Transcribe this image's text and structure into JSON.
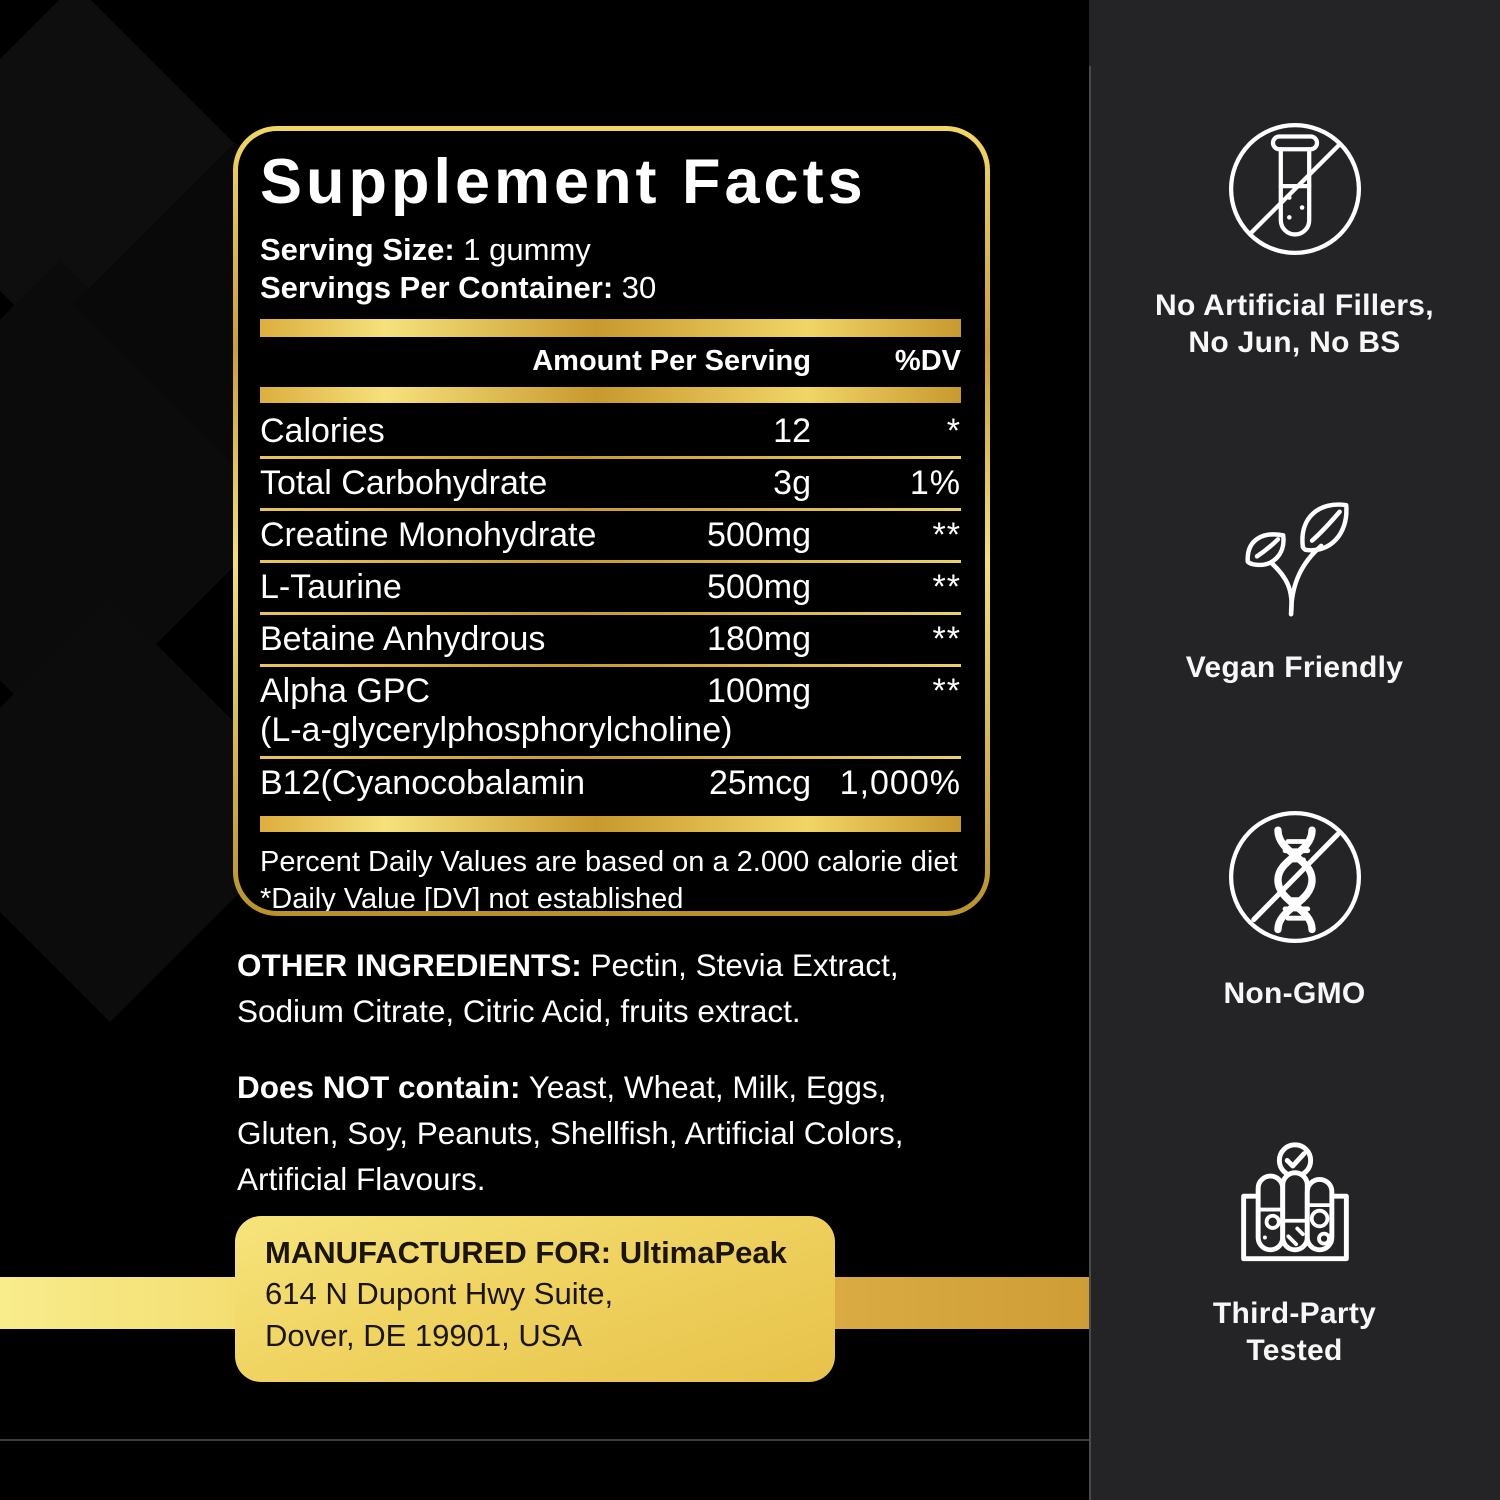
{
  "panel": {
    "title": "Supplement Facts",
    "serving_size_label": "Serving Size:",
    "serving_size_value": " 1 gummy",
    "servings_label": "Servings Per Container:",
    "servings_value": " 30",
    "col_amount": "Amount Per Serving",
    "col_dv": "%DV",
    "rows": [
      {
        "name": "Calories",
        "amount": "12",
        "dv": "*"
      },
      {
        "name": "Total Carbohydrate",
        "amount": "3g",
        "dv": "1%"
      },
      {
        "name": "Creatine Monohydrate",
        "amount": "500mg",
        "dv": "**"
      },
      {
        "name": "L-Taurine",
        "amount": "500mg",
        "dv": "**"
      },
      {
        "name": "Betaine Anhydrous",
        "amount": "180mg",
        "dv": "**"
      },
      {
        "name": "Alpha GPC",
        "name2": "(L-a-glycerylphosphorylcholine)",
        "amount": "100mg",
        "dv": "**"
      },
      {
        "name": "B12(Cyanocobalamin",
        "amount": "25mcg",
        "dv": "1,000%"
      }
    ],
    "footnote_line1": "Percent Daily Values are based on a 2.000 calorie diet",
    "footnote_line2": "*Daily Value [DV] not established"
  },
  "sections": {
    "other_ingredients_label": "OTHER INGREDIENTS:",
    "other_ingredients_text": " Pectin, Stevia Extract, Sodium Citrate, Citric Acid, fruits extract.",
    "not_contain_label": "Does NOT contain:",
    "not_contain_text": " Yeast, Wheat, Milk, Eggs, Gluten, Soy, Peanuts, Shellfish, Artificial Colors, Artificial Flavours."
  },
  "manufacturer": {
    "label": "MANUFACTURED FOR: UltimaPeak",
    "address_line1": "614 N Dupont Hwy Suite,",
    "address_line2": "Dover, DE 19901, USA"
  },
  "sidebar": {
    "items": [
      {
        "icon": "no-artificial-fillers-icon",
        "label_line1": "No Artificial Fillers,",
        "label_line2": "No Jun, No BS"
      },
      {
        "icon": "vegan-icon",
        "label_line1": "Vegan Friendly",
        "label_line2": ""
      },
      {
        "icon": "non-gmo-icon",
        "label_line1": "Non-GMO",
        "label_line2": ""
      },
      {
        "icon": "third-party-tested-icon",
        "label_line1": "Third-Party",
        "label_line2": "Tested"
      }
    ]
  },
  "colors": {
    "gold_light": "#f6e17c",
    "gold": "#d4a73c",
    "gold_deep": "#c8992e",
    "label_background": "#000000",
    "sidebar_background": "#242426",
    "text": "#ffffff",
    "manufacturer_text": "#1a1503"
  }
}
